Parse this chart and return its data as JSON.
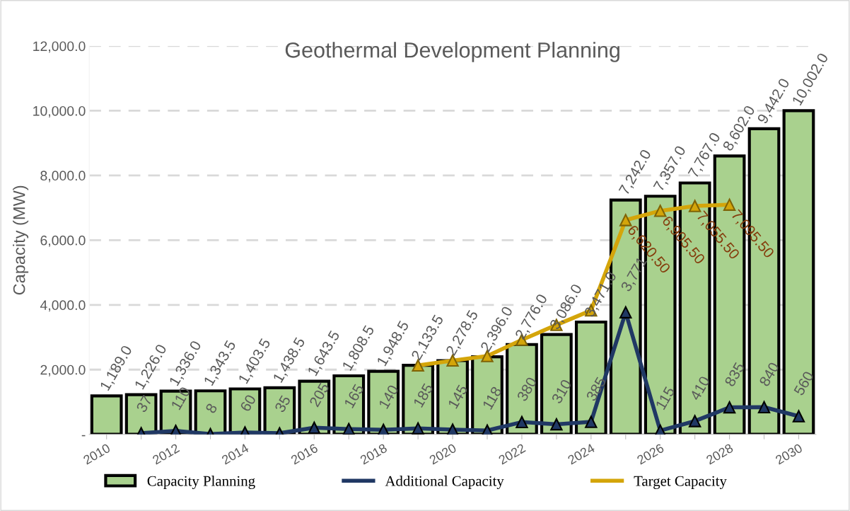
{
  "chart_data": {
    "type": "bar",
    "title": "Geothermal Development Planning",
    "ylabel": "Capacity (MW)",
    "categories": [
      "2010",
      null,
      "2012",
      null,
      "2014",
      null,
      "2016",
      null,
      "2018",
      null,
      "2020",
      null,
      "2022",
      null,
      "2024",
      null,
      "2026",
      null,
      "2028",
      null,
      "2030"
    ],
    "series": [
      {
        "name": "Capacity Planning",
        "color": "#a9d18e",
        "values": [
          1189.0,
          1226.0,
          1336.0,
          1343.5,
          1403.5,
          1438.5,
          1643.5,
          1808.5,
          1948.5,
          2133.5,
          2278.5,
          2396.0,
          2776.0,
          3086.0,
          3471.0,
          7242.0,
          7357.0,
          7767.0,
          8602.0,
          9442.0,
          10002.0
        ],
        "value_labels": [
          "1,189.0",
          "1,226.0",
          "1,336.0",
          "1,343.5",
          "1,403.5",
          "1,438.5",
          "1,643.5",
          "1,808.5",
          "1,948.5",
          "2,133.5",
          "2,278.5",
          "2,396.0",
          "2,776.0",
          "3,086.0",
          "3,471.0",
          "7,242.0",
          "7,357.0",
          "7,767.0",
          "8,602.0",
          "9,442.0",
          "10,002.0"
        ]
      },
      {
        "name": "Additional Capacity",
        "type": "line",
        "color": "#203864",
        "marker": "triangle",
        "values": [
          null,
          37,
          110,
          8,
          60,
          35,
          205,
          165,
          140,
          185,
          145,
          118,
          380,
          310,
          385,
          3771,
          115,
          410,
          835,
          840,
          560
        ],
        "value_labels": [
          null,
          "37",
          "110",
          "8",
          "60",
          "35",
          "205",
          "165",
          "140",
          "185",
          "145",
          "118",
          "380",
          "310",
          "385",
          "3,771",
          "115",
          "410",
          "835",
          "840",
          "560"
        ]
      },
      {
        "name": "Target Capacity",
        "type": "line",
        "color": "#d4a50a",
        "marker": "triangle",
        "values": [
          null,
          null,
          null,
          null,
          null,
          null,
          null,
          null,
          null,
          2130,
          2280,
          2420,
          2920,
          3380,
          3830,
          6620.5,
          6905.5,
          7055.5,
          7095.5,
          null,
          null
        ],
        "value_labels": [
          null,
          null,
          null,
          null,
          null,
          null,
          null,
          null,
          null,
          null,
          null,
          null,
          null,
          null,
          null,
          "6,620.50",
          "6,905.50",
          "7,055.50",
          "7,095.50",
          null,
          null
        ]
      }
    ],
    "ylim": [
      0,
      12000
    ],
    "yticks": [
      {
        "value": 0,
        "label": "-"
      },
      {
        "value": 2000,
        "label": "2,000.0"
      },
      {
        "value": 4000,
        "label": "4,000.0"
      },
      {
        "value": 6000,
        "label": "6,000.0"
      },
      {
        "value": 8000,
        "label": "8,000.0"
      },
      {
        "value": 10000,
        "label": "10,000.0"
      },
      {
        "value": 12000,
        "label": "12,000.0"
      }
    ],
    "grid": "y",
    "legend": "bottom"
  }
}
